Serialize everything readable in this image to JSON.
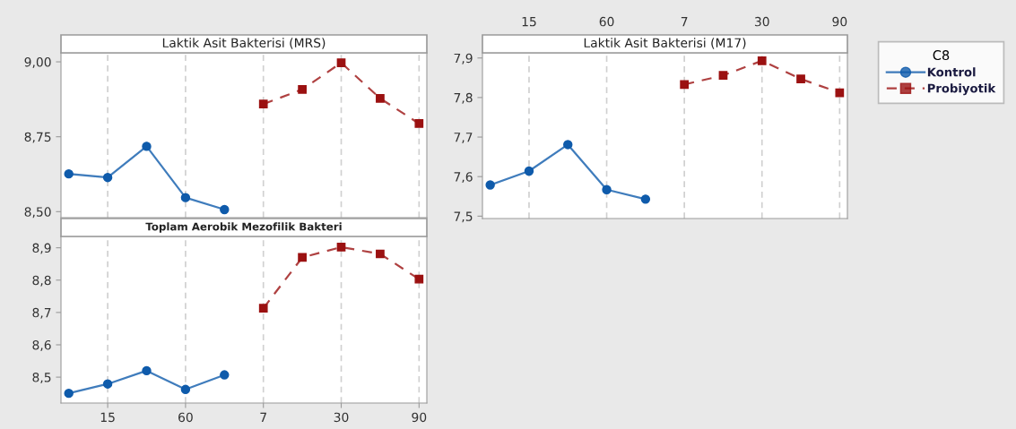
{
  "chart_data": [
    {
      "type": "line",
      "title": "Laktik Asit Bakterisi (MRS)",
      "categories": [
        null,
        "15",
        null,
        "60",
        null,
        "7",
        null,
        "30",
        null,
        "90"
      ],
      "series": [
        {
          "name": "Kontrol",
          "color": "#0f5bab",
          "marker": "circle",
          "line_style": "solid",
          "values": [
            8.626,
            8.614,
            8.718,
            8.547,
            8.507,
            null,
            null,
            null,
            null,
            null
          ]
        },
        {
          "name": "Probiyotik",
          "color": "#9b1111",
          "marker": "square",
          "line_style": "dashed",
          "values": [
            null,
            null,
            null,
            null,
            null,
            8.859,
            8.908,
            8.997,
            8.878,
            8.794
          ]
        }
      ],
      "ylim": [
        8.48,
        9.03
      ],
      "yticks": [
        {
          "value": 8.5,
          "label": "8,50"
        },
        {
          "value": 8.75,
          "label": "8,75"
        },
        {
          "value": 9.0,
          "label": "9,00"
        }
      ],
      "grid": "x",
      "tick_labels": "y",
      "legend": "right",
      "legend_title": "C8"
    },
    {
      "type": "line",
      "title": "Toplam Aerobik Mezofilik Bakteri",
      "categories": [
        null,
        "15",
        null,
        "60",
        null,
        "7",
        null,
        "30",
        null,
        "90"
      ],
      "series": [
        {
          "name": "Kontrol",
          "color": "#0f5bab",
          "marker": "circle",
          "line_style": "solid",
          "values": [
            8.45,
            8.479,
            8.52,
            8.462,
            8.507,
            null,
            null,
            null,
            null,
            null
          ]
        },
        {
          "name": "Probiyotik",
          "color": "#9b1111",
          "marker": "square",
          "line_style": "dashed",
          "values": [
            null,
            null,
            null,
            null,
            null,
            8.713,
            8.87,
            8.902,
            8.881,
            8.803
          ]
        }
      ],
      "ylim": [
        8.42,
        8.935
      ],
      "yticks": [
        {
          "value": 8.5,
          "label": "8,5"
        },
        {
          "value": 8.6,
          "label": "8,6"
        },
        {
          "value": 8.7,
          "label": "8,7"
        },
        {
          "value": 8.8,
          "label": "8,8"
        },
        {
          "value": 8.9,
          "label": "8,9"
        }
      ],
      "grid": "x"
    },
    {
      "type": "line",
      "title": "Laktik Asit Bakterisi (M17)",
      "categories": [
        null,
        "15",
        null,
        "60",
        null,
        "7",
        null,
        "30",
        null,
        "90"
      ],
      "series": [
        {
          "name": "Kontrol",
          "color": "#0f5bab",
          "marker": "circle",
          "line_style": "solid",
          "values": [
            7.579,
            7.614,
            7.681,
            7.567,
            7.543,
            null,
            null,
            null,
            null,
            null
          ]
        },
        {
          "name": "Probiyotik",
          "color": "#9b1111",
          "marker": "square",
          "line_style": "dashed",
          "values": [
            null,
            null,
            null,
            null,
            null,
            7.833,
            7.856,
            7.893,
            7.847,
            7.812
          ]
        }
      ],
      "ylim": [
        7.494,
        7.913
      ],
      "yticks": [
        {
          "value": 7.5,
          "label": "7,5"
        },
        {
          "value": 7.6,
          "label": "7,6"
        },
        {
          "value": 7.7,
          "label": "7,7"
        },
        {
          "value": 7.8,
          "label": "7,8"
        },
        {
          "value": 7.9,
          "label": "7,9"
        }
      ],
      "grid": "x"
    }
  ]
}
